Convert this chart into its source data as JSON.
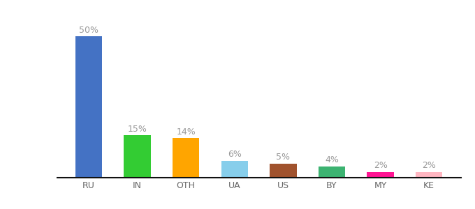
{
  "categories": [
    "RU",
    "IN",
    "OTH",
    "UA",
    "US",
    "BY",
    "MY",
    "KE"
  ],
  "values": [
    50,
    15,
    14,
    6,
    5,
    4,
    2,
    2
  ],
  "bar_colors": [
    "#4472C4",
    "#33CC33",
    "#FFA500",
    "#87CEEB",
    "#A0522D",
    "#3CB371",
    "#FF1493",
    "#FFB6C1"
  ],
  "ylim": [
    0,
    57
  ],
  "background_color": "#ffffff",
  "label_fontsize": 9,
  "tick_fontsize": 9,
  "label_color": "#999999",
  "tick_color": "#666666",
  "bar_width": 0.55
}
